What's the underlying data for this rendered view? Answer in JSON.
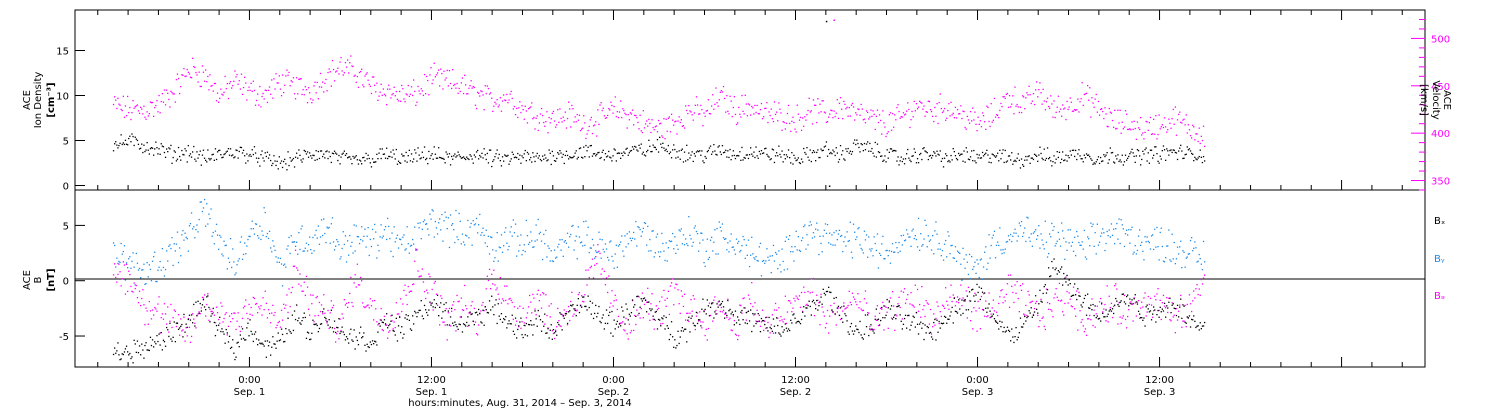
{
  "chart_data": [
    {
      "type": "scatter",
      "panel": "top",
      "left_axis": {
        "label_lines": [
          "ACE",
          "Ion Density",
          "[cm⁻³]"
        ],
        "ticks": [
          0,
          5,
          10,
          15
        ],
        "range": [
          -0.5,
          19.5
        ]
      },
      "right_axis": {
        "label_lines": [
          "ACE",
          "Velocity",
          "[km/s]"
        ],
        "ticks": [
          350,
          400,
          450,
          500
        ],
        "range": [
          340,
          530
        ],
        "color": "#ff00ff"
      },
      "series": [
        {
          "key": "velocity",
          "color": "#ff00ff",
          "axis": "right",
          "hours": [
            -9,
            -8,
            -7,
            -6,
            -5,
            -4,
            -3,
            -2,
            -1,
            0,
            1,
            2,
            3,
            4,
            5,
            6,
            7,
            8,
            9,
            10,
            11,
            12,
            13,
            14,
            15,
            16,
            17,
            18,
            19,
            20,
            21,
            22,
            23,
            24,
            25,
            26,
            27,
            28,
            29,
            30,
            31,
            32,
            33,
            34,
            35,
            36,
            37,
            38,
            39,
            40,
            41,
            42,
            43,
            44,
            45,
            46,
            47,
            48,
            49,
            50,
            51,
            52,
            53,
            54,
            55,
            56,
            57,
            58,
            59,
            60,
            61,
            62,
            63
          ],
          "values": [
            430,
            425,
            425,
            430,
            445,
            468,
            462,
            440,
            455,
            445,
            440,
            455,
            450,
            445,
            460,
            470,
            465,
            450,
            445,
            440,
            442,
            458,
            455,
            450,
            440,
            435,
            440,
            425,
            420,
            415,
            420,
            410,
            415,
            425,
            420,
            410,
            405,
            412,
            425,
            420,
            440,
            425,
            430,
            420,
            420,
            415,
            425,
            420,
            430,
            420,
            415,
            410,
            418,
            430,
            425,
            428,
            420,
            410,
            420,
            440,
            430,
            445,
            425,
            430,
            440,
            425,
            412,
            410,
            405,
            410,
            415,
            405,
            400
          ]
        },
        {
          "key": "density",
          "color": "#000000",
          "axis": "left",
          "hours": [
            -9,
            -8,
            -7,
            -6,
            -5,
            -4,
            -3,
            -2,
            -1,
            0,
            1,
            2,
            3,
            4,
            5,
            6,
            7,
            8,
            9,
            10,
            11,
            12,
            13,
            14,
            15,
            16,
            17,
            18,
            19,
            20,
            21,
            22,
            23,
            24,
            25,
            26,
            27,
            28,
            29,
            30,
            31,
            32,
            33,
            34,
            35,
            36,
            37,
            38,
            39,
            40,
            41,
            42,
            43,
            44,
            45,
            46,
            47,
            48,
            49,
            50,
            51,
            52,
            53,
            54,
            55,
            56,
            57,
            58,
            59,
            60,
            61,
            62,
            63
          ],
          "values": [
            4.5,
            5.0,
            4.5,
            4.0,
            3.5,
            3.8,
            3.0,
            3.5,
            3.8,
            3.5,
            3.0,
            2.5,
            3.0,
            3.5,
            3.5,
            3.0,
            2.8,
            3.0,
            3.5,
            3.0,
            3.2,
            3.5,
            3.0,
            3.2,
            3.5,
            3.0,
            3.0,
            3.2,
            3.0,
            3.5,
            3.5,
            3.8,
            3.5,
            3.5,
            3.8,
            4.0,
            4.5,
            4.0,
            3.5,
            3.5,
            4.0,
            3.5,
            3.8,
            3.5,
            3.5,
            3.0,
            3.5,
            4.0,
            3.5,
            4.5,
            4.0,
            3.5,
            3.0,
            3.5,
            3.5,
            3.0,
            3.5,
            3.0,
            3.5,
            3.0,
            3.0,
            3.5,
            3.0,
            3.5,
            3.5,
            3.0,
            3.5,
            3.2,
            3.5,
            3.5,
            3.8,
            3.5,
            3.5
          ]
        }
      ],
      "outliers": [
        {
          "hours": 38.5,
          "value": 520,
          "series": "velocity"
        },
        {
          "hours": 38.0,
          "value": 18.3,
          "series": "density"
        },
        {
          "hours": 38.2,
          "value": 0.0,
          "series": "density"
        }
      ]
    },
    {
      "type": "scatter",
      "panel": "bottom",
      "left_axis": {
        "label_lines": [
          "ACE",
          "B",
          "[nT]"
        ],
        "ticks": [
          -5,
          0,
          5
        ],
        "range": [
          -7.8,
          8.2
        ]
      },
      "zero_line": true,
      "legend": [
        "Bₓ",
        "Bᵧ",
        "Bₔ"
      ],
      "series": [
        {
          "key": "bx",
          "name": "Bₓ",
          "color": "#000000",
          "hours": [
            -9,
            -8,
            -7,
            -6,
            -5,
            -4,
            -3,
            -2,
            -1,
            0,
            1,
            2,
            3,
            4,
            5,
            6,
            7,
            8,
            9,
            10,
            11,
            12,
            13,
            14,
            15,
            16,
            17,
            18,
            19,
            20,
            21,
            22,
            23,
            24,
            25,
            26,
            27,
            28,
            29,
            30,
            31,
            32,
            33,
            34,
            35,
            36,
            37,
            38,
            39,
            40,
            41,
            42,
            43,
            44,
            45,
            46,
            47,
            48,
            49,
            50,
            51,
            52,
            53,
            54,
            55,
            56,
            57,
            58,
            59,
            60,
            61,
            62,
            63
          ],
          "values": [
            -6.5,
            -6.5,
            -6.0,
            -5.5,
            -4.5,
            -3.5,
            -2.0,
            -4.5,
            -6.0,
            -4.0,
            -6.0,
            -5.5,
            -3.0,
            -4.5,
            -3.0,
            -4.5,
            -5.0,
            -5.5,
            -3.5,
            -4.5,
            -3.0,
            -2.0,
            -3.0,
            -4.0,
            -3.0,
            -2.5,
            -3.5,
            -4.5,
            -3.5,
            -4.5,
            -3.0,
            -2.0,
            -3.0,
            -4.0,
            -2.5,
            -2.0,
            -3.5,
            -5.0,
            -4.0,
            -2.5,
            -2.0,
            -3.0,
            -3.5,
            -4.0,
            -4.5,
            -3.5,
            -2.5,
            -1.0,
            -3.0,
            -4.5,
            -4.0,
            -2.5,
            -3.5,
            -4.0,
            -4.5,
            -3.0,
            -2.0,
            -1.0,
            -3.0,
            -5.0,
            -4.0,
            -2.0,
            1.5,
            -0.5,
            -2.0,
            -3.0,
            -2.0,
            -1.5,
            -3.0,
            -2.5,
            -2.0,
            -3.5,
            -4.5
          ]
        },
        {
          "key": "by",
          "name": "Bᵧ",
          "color": "#1f8be6",
          "hours": [
            -9,
            -8,
            -7,
            -6,
            -5,
            -4,
            -3,
            -2,
            -1,
            0,
            1,
            2,
            3,
            4,
            5,
            6,
            7,
            8,
            9,
            10,
            11,
            12,
            13,
            14,
            15,
            16,
            17,
            18,
            19,
            20,
            21,
            22,
            23,
            24,
            25,
            26,
            27,
            28,
            29,
            30,
            31,
            32,
            33,
            34,
            35,
            36,
            37,
            38,
            39,
            40,
            41,
            42,
            43,
            44,
            45,
            46,
            47,
            48,
            49,
            50,
            51,
            52,
            53,
            54,
            55,
            56,
            57,
            58,
            59,
            60,
            61,
            62,
            63
          ],
          "values": [
            2.5,
            1.5,
            1.0,
            1.5,
            3.0,
            4.0,
            6.5,
            3.5,
            1.5,
            4.5,
            5.5,
            1.0,
            4.0,
            3.5,
            5.0,
            3.0,
            4.0,
            3.5,
            4.5,
            3.0,
            4.0,
            5.5,
            5.0,
            4.5,
            5.0,
            3.0,
            4.0,
            3.5,
            4.5,
            2.0,
            3.5,
            4.0,
            3.0,
            2.5,
            4.0,
            4.5,
            3.0,
            3.5,
            4.5,
            3.0,
            4.0,
            3.5,
            2.5,
            2.0,
            1.5,
            4.0,
            4.5,
            4.0,
            3.5,
            4.0,
            3.0,
            2.5,
            4.0,
            4.5,
            4.0,
            3.5,
            1.5,
            1.0,
            3.5,
            4.0,
            4.5,
            3.5,
            4.0,
            3.5,
            3.0,
            4.0,
            4.5,
            4.0,
            3.5,
            3.5,
            3.0,
            2.5,
            2.0
          ]
        },
        {
          "key": "bz",
          "name": "Bₔ",
          "color": "#ff00ff",
          "hours": [
            -9,
            -8,
            -7,
            -6,
            -5,
            -4,
            -3,
            -2,
            -1,
            0,
            1,
            2,
            3,
            4,
            5,
            6,
            7,
            8,
            9,
            10,
            11,
            12,
            13,
            14,
            15,
            16,
            17,
            18,
            19,
            20,
            21,
            22,
            23,
            24,
            25,
            26,
            27,
            28,
            29,
            30,
            31,
            32,
            33,
            34,
            35,
            36,
            37,
            38,
            39,
            40,
            41,
            42,
            43,
            44,
            45,
            46,
            47,
            48,
            49,
            50,
            51,
            52,
            53,
            54,
            55,
            56,
            57,
            58,
            59,
            60,
            61,
            62,
            63
          ],
          "values": [
            1.0,
            0.5,
            -2.0,
            -3.0,
            -4.0,
            -4.5,
            -2.0,
            -3.0,
            -3.5,
            -2.0,
            -2.5,
            -4.0,
            1.0,
            -2.0,
            -3.0,
            -4.0,
            0.5,
            -2.5,
            -3.5,
            -2.0,
            1.5,
            -1.0,
            -3.5,
            -2.0,
            -4.0,
            1.0,
            -2.0,
            -3.0,
            -1.0,
            -4.0,
            -2.5,
            -1.0,
            2.0,
            -2.5,
            -4.0,
            -2.0,
            -3.0,
            -1.0,
            -2.5,
            -3.5,
            -2.0,
            -4.0,
            -1.5,
            -4.5,
            -3.0,
            -2.0,
            -1.0,
            -3.5,
            -2.5,
            -1.5,
            -4.0,
            -3.0,
            -2.0,
            -1.5,
            -3.5,
            -2.0,
            -1.5,
            -3.0,
            -2.5,
            -1.0,
            -2.0,
            -3.0,
            -2.0,
            -1.0,
            -3.5,
            -2.5,
            -2.0,
            -3.0,
            -1.5,
            -2.0,
            -3.5,
            -2.5,
            1.0
          ]
        }
      ]
    }
  ],
  "x_axis": {
    "range_hours": [
      -11.5,
      77.5
    ],
    "label": "hours:minutes, Aug. 31, 2014 – Sep. 3, 2014",
    "ticks": [
      {
        "hours": 0,
        "time": "0:00",
        "date": "Sep. 1"
      },
      {
        "hours": 12,
        "time": "12:00",
        "date": "Sep. 1"
      },
      {
        "hours": 24,
        "time": "0:00",
        "date": "Sep. 2"
      },
      {
        "hours": 36,
        "time": "12:00",
        "date": "Sep. 2"
      },
      {
        "hours": 48,
        "time": "0:00",
        "date": "Sep. 3"
      },
      {
        "hours": 60,
        "time": "12:00",
        "date": "Sep. 3"
      }
    ],
    "minor_step_hours": 2
  }
}
